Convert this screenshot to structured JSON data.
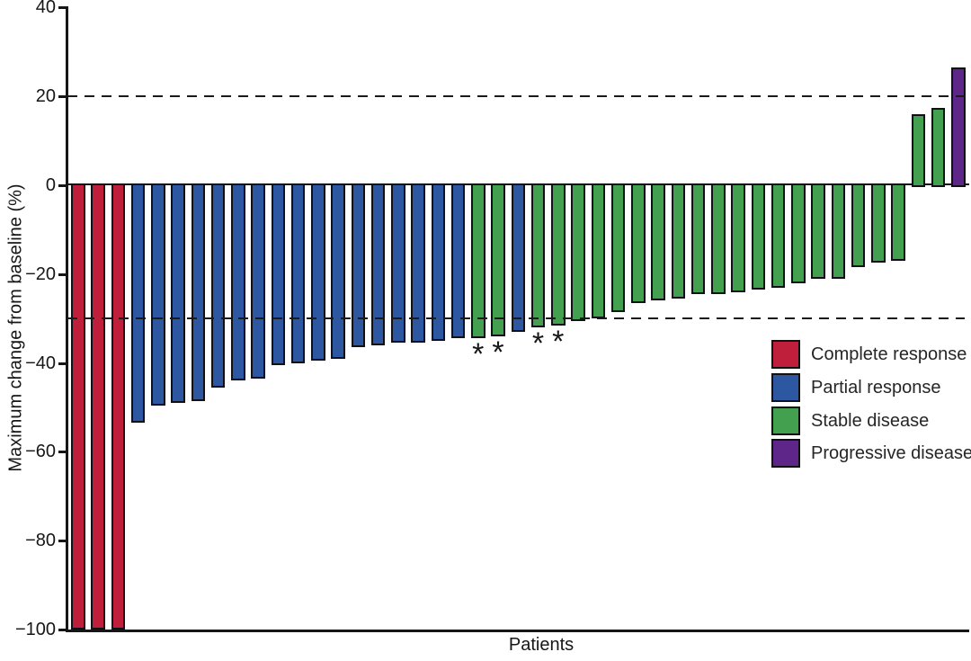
{
  "colors": {
    "complete_response": "#c01f3c",
    "partial_response": "#2d57a0",
    "stable_disease": "#43a04f",
    "progressive_disease": "#5f2689",
    "axis": "#161616"
  },
  "legend": {
    "items": [
      {
        "label": "Complete response",
        "color_key": "complete_response"
      },
      {
        "label": "Partial response",
        "color_key": "partial_response"
      },
      {
        "label": "Stable disease",
        "color_key": "stable_disease"
      },
      {
        "label": "Progressive disease",
        "color_key": "progressive_disease"
      }
    ]
  },
  "annotations": {
    "star_symbol": "*"
  },
  "chart_data": {
    "type": "bar",
    "subtype": "waterfall",
    "title": "",
    "xlabel": "Patients",
    "ylabel": "Maximum change from baseline (%)",
    "ylim": [
      -100,
      40
    ],
    "grid": false,
    "legend_position": "center-right",
    "yticks": [
      {
        "value": 40,
        "label": "40"
      },
      {
        "value": 20,
        "label": "20"
      },
      {
        "value": 0,
        "label": "0"
      },
      {
        "value": -20,
        "label": "−20"
      },
      {
        "value": -40,
        "label": "−40"
      },
      {
        "value": -60,
        "label": "−60"
      },
      {
        "value": -80,
        "label": "−80"
      },
      {
        "value": -100,
        "label": "−100"
      }
    ],
    "reference_lines": [
      {
        "value": 20,
        "style": "dashed"
      },
      {
        "value": -30,
        "style": "dashed"
      }
    ],
    "bars": [
      {
        "value": -100,
        "response": "complete_response",
        "star": false
      },
      {
        "value": -100,
        "response": "complete_response",
        "star": false
      },
      {
        "value": -100,
        "response": "complete_response",
        "star": false
      },
      {
        "value": -53.5,
        "response": "partial_response",
        "star": false
      },
      {
        "value": -49.5,
        "response": "partial_response",
        "star": false
      },
      {
        "value": -49,
        "response": "partial_response",
        "star": false
      },
      {
        "value": -48.5,
        "response": "partial_response",
        "star": false
      },
      {
        "value": -45.5,
        "response": "partial_response",
        "star": false
      },
      {
        "value": -44,
        "response": "partial_response",
        "star": false
      },
      {
        "value": -43.5,
        "response": "partial_response",
        "star": false
      },
      {
        "value": -40.5,
        "response": "partial_response",
        "star": false
      },
      {
        "value": -40,
        "response": "partial_response",
        "star": false
      },
      {
        "value": -39.5,
        "response": "partial_response",
        "star": false
      },
      {
        "value": -39,
        "response": "partial_response",
        "star": false
      },
      {
        "value": -36.5,
        "response": "partial_response",
        "star": false
      },
      {
        "value": -36,
        "response": "partial_response",
        "star": false
      },
      {
        "value": -35.5,
        "response": "partial_response",
        "star": false
      },
      {
        "value": -35.5,
        "response": "partial_response",
        "star": false
      },
      {
        "value": -35,
        "response": "partial_response",
        "star": false
      },
      {
        "value": -34.5,
        "response": "partial_response",
        "star": false
      },
      {
        "value": -34.5,
        "response": "stable_disease",
        "star": true
      },
      {
        "value": -34,
        "response": "stable_disease",
        "star": true
      },
      {
        "value": -33,
        "response": "partial_response",
        "star": false
      },
      {
        "value": -32,
        "response": "stable_disease",
        "star": true
      },
      {
        "value": -31.5,
        "response": "stable_disease",
        "star": true
      },
      {
        "value": -30.5,
        "response": "stable_disease",
        "star": false
      },
      {
        "value": -30,
        "response": "stable_disease",
        "star": false
      },
      {
        "value": -28.5,
        "response": "stable_disease",
        "star": false
      },
      {
        "value": -26.5,
        "response": "stable_disease",
        "star": false
      },
      {
        "value": -26,
        "response": "stable_disease",
        "star": false
      },
      {
        "value": -25.5,
        "response": "stable_disease",
        "star": false
      },
      {
        "value": -24.5,
        "response": "stable_disease",
        "star": false
      },
      {
        "value": -24.5,
        "response": "stable_disease",
        "star": false
      },
      {
        "value": -24,
        "response": "stable_disease",
        "star": false
      },
      {
        "value": -23.5,
        "response": "stable_disease",
        "star": false
      },
      {
        "value": -23,
        "response": "stable_disease",
        "star": false
      },
      {
        "value": -22,
        "response": "stable_disease",
        "star": false
      },
      {
        "value": -21,
        "response": "stable_disease",
        "star": false
      },
      {
        "value": -21,
        "response": "stable_disease",
        "star": false
      },
      {
        "value": -18.5,
        "response": "stable_disease",
        "star": false
      },
      {
        "value": -17.5,
        "response": "stable_disease",
        "star": false
      },
      {
        "value": -17,
        "response": "stable_disease",
        "star": false
      },
      {
        "value": 16,
        "response": "stable_disease",
        "star": false
      },
      {
        "value": 17.5,
        "response": "stable_disease",
        "star": false
      },
      {
        "value": 26.5,
        "response": "progressive_disease",
        "star": false
      }
    ]
  }
}
